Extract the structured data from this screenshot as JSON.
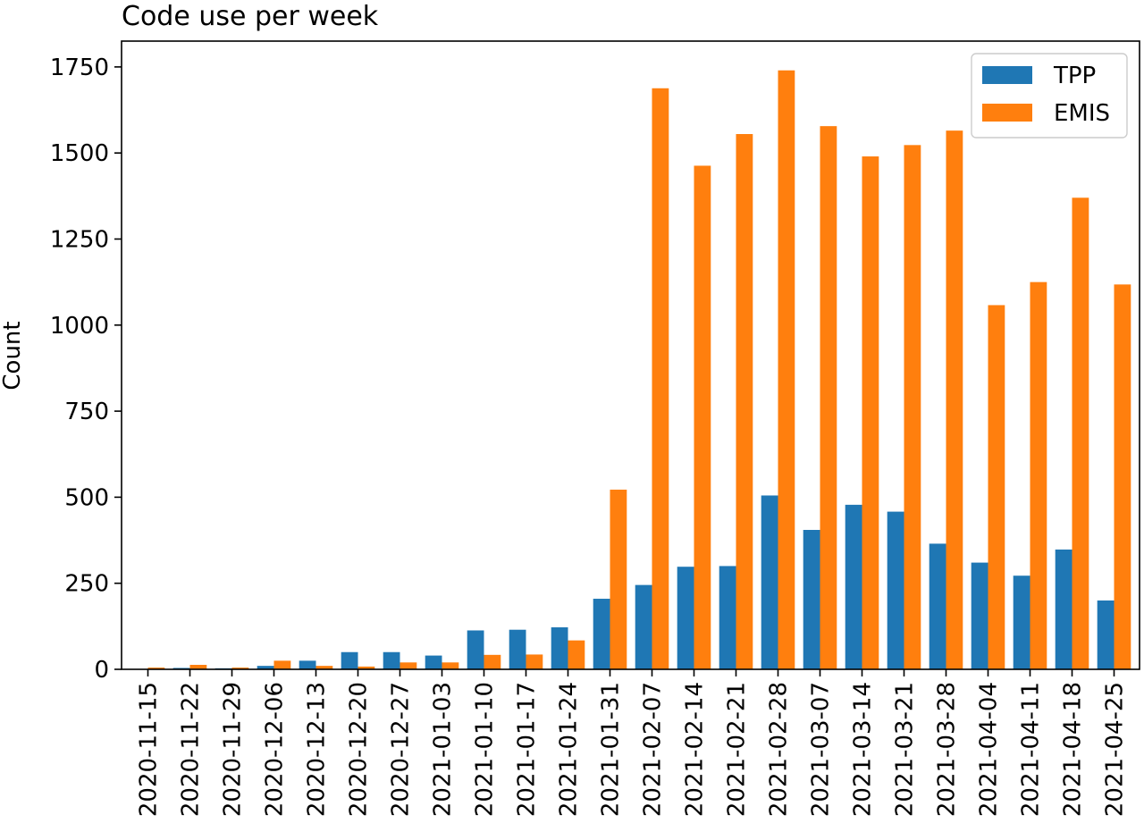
{
  "chart_data": {
    "type": "bar",
    "title": "Code use per week",
    "xlabel": "",
    "ylabel": "Count",
    "ylim": [
      0,
      1825
    ],
    "yticks": [
      0,
      250,
      500,
      750,
      1000,
      1250,
      1500,
      1750
    ],
    "grid": false,
    "legend_position": "top-right",
    "categories": [
      "2020-11-15",
      "2020-11-22",
      "2020-11-29",
      "2020-12-06",
      "2020-12-13",
      "2020-12-20",
      "2020-12-27",
      "2021-01-03",
      "2021-01-10",
      "2021-01-17",
      "2021-01-24",
      "2021-01-31",
      "2021-02-07",
      "2021-02-14",
      "2021-02-21",
      "2021-02-28",
      "2021-03-07",
      "2021-03-14",
      "2021-03-21",
      "2021-03-28",
      "2021-04-04",
      "2021-04-11",
      "2021-04-18",
      "2021-04-25"
    ],
    "series": [
      {
        "name": "TPP",
        "color": "#1f77b4",
        "values": [
          0,
          4,
          3,
          10,
          25,
          50,
          50,
          40,
          113,
          115,
          122,
          205,
          245,
          298,
          300,
          505,
          405,
          478,
          458,
          365,
          310,
          272,
          348,
          200
        ]
      },
      {
        "name": "EMIS",
        "color": "#ff7f0e",
        "values": [
          5,
          13,
          5,
          25,
          10,
          8,
          20,
          20,
          42,
          43,
          84,
          522,
          1688,
          1463,
          1555,
          1740,
          1578,
          1490,
          1523,
          1565,
          1058,
          1125,
          1370,
          1118
        ]
      }
    ]
  }
}
